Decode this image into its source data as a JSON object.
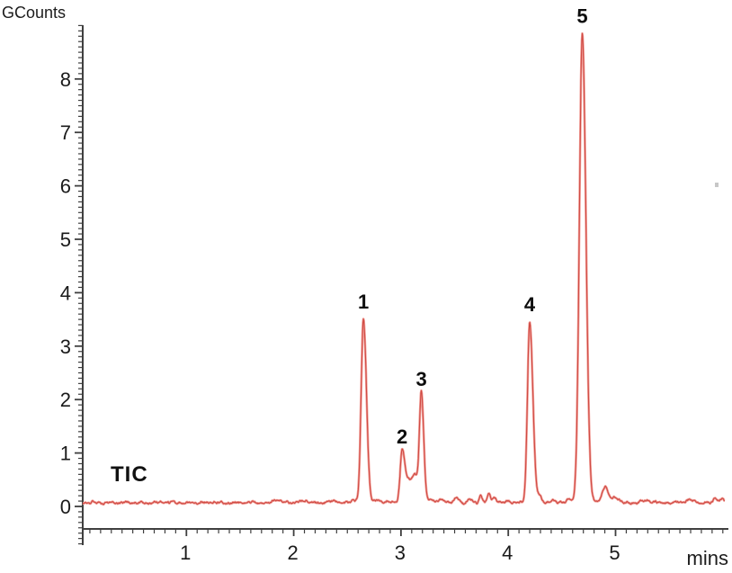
{
  "chart_data": {
    "type": "line",
    "title": "",
    "trace_label": "TIC",
    "ylabel": "GCounts",
    "xlabel": "mins",
    "xlim": [
      0,
      6.05
    ],
    "ylim": [
      -0.42,
      9.0
    ],
    "x_ticks": [
      1,
      2,
      3,
      4,
      5
    ],
    "y_ticks": [
      0,
      1,
      2,
      3,
      4,
      5,
      6,
      7,
      8
    ],
    "x_minor_step": 0.1,
    "y_minor_step": 0.1,
    "grid": "off",
    "legend": "none",
    "baseline_level": 0.07,
    "line_color": "#cf4a43",
    "line_halo_color": "#f2a09a",
    "axis_color": "#3f3f3f",
    "text_color": "#1a1a1a",
    "peaks": [
      {
        "label": "1",
        "rt_min": 2.65,
        "apex_gcounts": 3.5,
        "sigma": 0.021,
        "tail": 1.35
      },
      {
        "label": "2",
        "rt_min": 3.01,
        "apex_gcounts": 0.98,
        "sigma": 0.018,
        "tail": 1.4
      },
      {
        "label": "3",
        "rt_min": 3.19,
        "apex_gcounts": 2.05,
        "sigma": 0.017,
        "tail": 1.3
      },
      {
        "label": "4",
        "rt_min": 4.2,
        "apex_gcounts": 3.45,
        "sigma": 0.021,
        "tail": 1.4
      },
      {
        "label": "5",
        "rt_min": 4.69,
        "apex_gcounts": 8.85,
        "sigma": 0.027,
        "tail": 1.25
      }
    ],
    "baseline_features": [
      {
        "rt_min": 1.83,
        "gcounts": 0.05,
        "sigma": 0.03
      },
      {
        "rt_min": 2.1,
        "gcounts": 0.06,
        "sigma": 0.025
      },
      {
        "rt_min": 2.38,
        "gcounts": 0.03,
        "sigma": 0.04
      },
      {
        "rt_min": 2.55,
        "gcounts": 0.06,
        "sigma": 0.022
      },
      {
        "rt_min": 2.78,
        "gcounts": 0.05,
        "sigma": 0.02
      },
      {
        "rt_min": 2.87,
        "gcounts": 0.04,
        "sigma": 0.02
      },
      {
        "rt_min": 3.09,
        "gcounts": 0.42,
        "sigma": 0.045
      },
      {
        "rt_min": 3.14,
        "gcounts": 0.25,
        "sigma": 0.022
      },
      {
        "rt_min": 3.28,
        "gcounts": 0.09,
        "sigma": 0.018
      },
      {
        "rt_min": 3.38,
        "gcounts": 0.05,
        "sigma": 0.03
      },
      {
        "rt_min": 3.52,
        "gcounts": 0.09,
        "sigma": 0.018
      },
      {
        "rt_min": 3.64,
        "gcounts": 0.07,
        "sigma": 0.02
      },
      {
        "rt_min": 3.74,
        "gcounts": 0.12,
        "sigma": 0.014
      },
      {
        "rt_min": 3.82,
        "gcounts": 0.16,
        "sigma": 0.012
      },
      {
        "rt_min": 3.87,
        "gcounts": 0.1,
        "sigma": 0.018
      },
      {
        "rt_min": 4.0,
        "gcounts": 0.05,
        "sigma": 0.02
      },
      {
        "rt_min": 4.29,
        "gcounts": 0.13,
        "sigma": 0.018
      },
      {
        "rt_min": 4.42,
        "gcounts": 0.05,
        "sigma": 0.025
      },
      {
        "rt_min": 4.57,
        "gcounts": 0.07,
        "sigma": 0.018
      },
      {
        "rt_min": 4.9,
        "gcounts": 0.3,
        "sigma": 0.025
      },
      {
        "rt_min": 5.0,
        "gcounts": 0.1,
        "sigma": 0.03
      },
      {
        "rt_min": 5.3,
        "gcounts": 0.03,
        "sigma": 0.05
      },
      {
        "rt_min": 5.7,
        "gcounts": 0.04,
        "sigma": 0.04
      },
      {
        "rt_min": 5.93,
        "gcounts": 0.09,
        "sigma": 0.02
      },
      {
        "rt_min": 6.0,
        "gcounts": 0.06,
        "sigma": 0.015
      }
    ]
  }
}
